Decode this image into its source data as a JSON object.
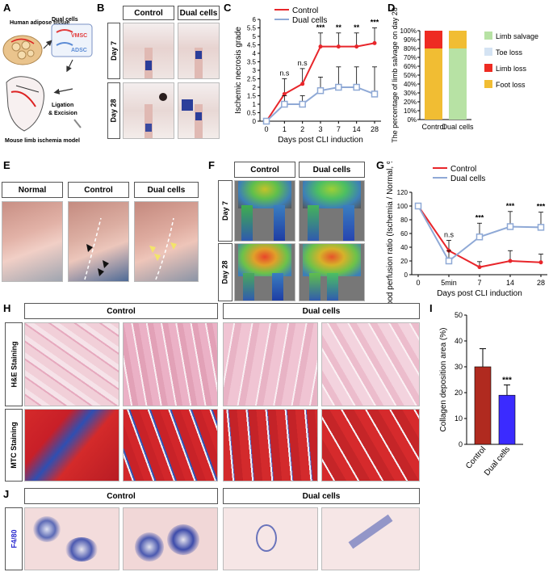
{
  "panels": {
    "A": "A",
    "B": "B",
    "C": "C",
    "D": "D",
    "E": "E",
    "F": "F",
    "G": "G",
    "H": "H",
    "I": "I",
    "J": "J"
  },
  "panelA": {
    "tissue": "Human adipose tissue",
    "dual": "Dual cells",
    "vmsc": "VMSC",
    "adsc": "ADSC",
    "ligation": "Ligation",
    "excision": "& Excision",
    "model": "Mouse limb ischemia model"
  },
  "panelB": {
    "control": "Control",
    "dual": "Dual cells",
    "day7": "Day 7",
    "day28": "Day 28"
  },
  "panelE": {
    "normal": "Normal",
    "control": "Control",
    "dual": "Dual cells"
  },
  "panelF": {
    "control": "Control",
    "dual": "Dual cells",
    "day7": "Day 7",
    "day28": "Day 28"
  },
  "panelH": {
    "control": "Control",
    "dual": "Dual cells",
    "he": "H&E Staining",
    "mtc": "MTC Staining"
  },
  "panelJ": {
    "control": "Control",
    "dual": "Dual cells",
    "f480": "F4/80"
  },
  "colors": {
    "control": "#e8262b",
    "dual": "#8fa9d6",
    "salvage": "#b7e2a4",
    "toe": "#d4e3f3",
    "limbloss": "#ee2b22",
    "foot": "#f1bd33",
    "barControl": "#b02a1f",
    "barDual": "#3b2bff"
  },
  "chart_data": [
    {
      "id": "C",
      "type": "line",
      "ylabel": "Ischemic necrosis grade",
      "xlabel": "Days post CLI induction",
      "categories": [
        "0",
        "1",
        "2",
        "3",
        "7",
        "14",
        "28"
      ],
      "ylim": [
        0,
        6
      ],
      "yticks": [
        "0",
        "0.5",
        "1",
        "1.5",
        "2",
        "2.5",
        "3",
        "3.5",
        "4",
        "4.5",
        "5",
        "5.5",
        "6"
      ],
      "series": [
        {
          "name": "Control",
          "values": [
            0,
            1.6,
            2.2,
            4.4,
            4.4,
            4.4,
            4.6
          ],
          "err": [
            0,
            0.9,
            0.9,
            0.8,
            0.8,
            0.8,
            0.9
          ]
        },
        {
          "name": "Dual cells",
          "values": [
            0,
            1,
            1,
            1.8,
            2,
            2,
            1.6
          ],
          "err": [
            0,
            0.5,
            0.5,
            0.8,
            1.2,
            1.2,
            1.6
          ]
        }
      ],
      "annotations": [
        "n.s",
        "n.s",
        "***",
        "**",
        "**",
        "***"
      ],
      "annotation_x": [
        "1",
        "2",
        "3",
        "7",
        "14",
        "28"
      ]
    },
    {
      "id": "D",
      "type": "bar",
      "stacked": true,
      "ylabel": "The percentage of limb salvage on day 28",
      "categories": [
        "Control",
        "Dual cells"
      ],
      "yticks": [
        "0%",
        "10%",
        "20%",
        "30%",
        "40%",
        "50%",
        "60%",
        "70%",
        "80%",
        "90%",
        "100%"
      ],
      "ylim": [
        0,
        100
      ],
      "series": [
        {
          "name": "Foot loss",
          "values": [
            80,
            0
          ]
        },
        {
          "name": "Limb loss",
          "values": [
            20,
            0
          ]
        },
        {
          "name": "Toe loss",
          "values": [
            0,
            0
          ]
        },
        {
          "name": "Limb salvage",
          "values": [
            0,
            80
          ]
        }
      ],
      "dual_top": 20,
      "legend_order": [
        "Limb salvage",
        "Toe loss",
        "Limb loss",
        "Foot loss"
      ]
    },
    {
      "id": "G",
      "type": "line",
      "ylabel": "Blood perfusion ratio (Ischemia / Normal, %)",
      "xlabel": "Days post CLI induction",
      "categories": [
        "0",
        "5min",
        "7",
        "14",
        "28"
      ],
      "ylim": [
        0,
        120
      ],
      "yticks": [
        "0",
        "20",
        "40",
        "60",
        "80",
        "100",
        "120"
      ],
      "series": [
        {
          "name": "Control",
          "values": [
            100,
            35,
            11,
            20,
            18
          ],
          "err": [
            0,
            15,
            8,
            15,
            12
          ]
        },
        {
          "name": "Dual cells",
          "values": [
            100,
            20,
            55,
            70,
            69
          ],
          "err": [
            0,
            15,
            20,
            22,
            22
          ]
        }
      ],
      "annotations": [
        "n.s",
        "***",
        "***",
        "***"
      ],
      "annotation_x": [
        "5min",
        "7",
        "14",
        "28"
      ]
    },
    {
      "id": "I",
      "type": "bar",
      "ylabel": "Collagen deposition area (%)",
      "categories": [
        "Control",
        "Dual cells"
      ],
      "values": [
        30,
        19
      ],
      "err": [
        7,
        4
      ],
      "ylim": [
        0,
        50
      ],
      "yticks": [
        "0",
        "10",
        "20",
        "30",
        "40",
        "50"
      ],
      "annotation": "***"
    }
  ]
}
